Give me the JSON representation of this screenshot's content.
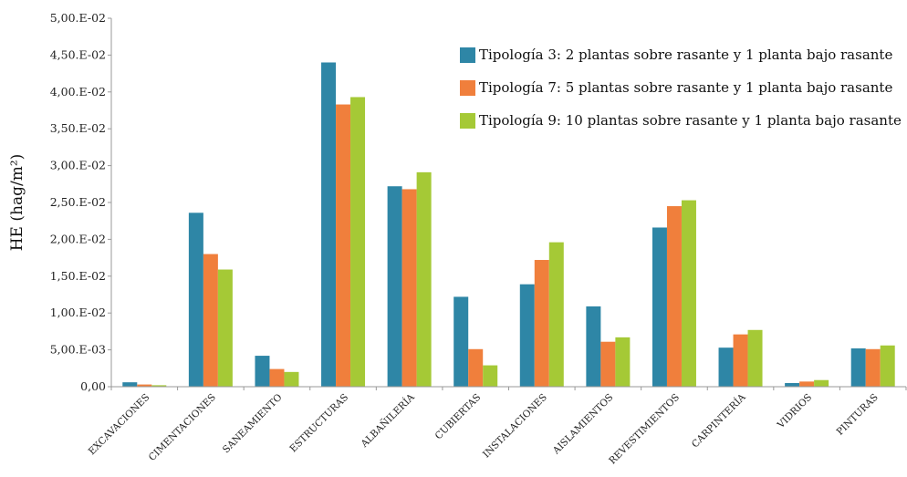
{
  "chart_data": {
    "type": "bar",
    "title": "",
    "xlabel": "",
    "ylabel": "HE (hag/m²)",
    "ylim": [
      0,
      0.05
    ],
    "y_ticks": [
      {
        "value": 0,
        "label": "0,00"
      },
      {
        "value": 0.005,
        "label": "5,00.E-03"
      },
      {
        "value": 0.01,
        "label": "1,00.E-02"
      },
      {
        "value": 0.015,
        "label": "1,50.E-02"
      },
      {
        "value": 0.02,
        "label": "2,00.E-02"
      },
      {
        "value": 0.025,
        "label": "2,50.E-02"
      },
      {
        "value": 0.03,
        "label": "3,00.E-02"
      },
      {
        "value": 0.035,
        "label": "3,50.E-02"
      },
      {
        "value": 0.04,
        "label": "4,00.E-02"
      },
      {
        "value": 0.045,
        "label": "4,50.E-02"
      },
      {
        "value": 0.05,
        "label": "5,00.E-02"
      }
    ],
    "categories": [
      "EXCAVACIONES",
      "CIMENTACIONES",
      "SANEAMIENTO",
      "ESTRUCTURAS",
      "ALBAÑILERÍA",
      "CUBIERTAS",
      "INSTALACIONES",
      "AISLAMIENTOS",
      "REVESTIMIENTOS",
      "CARPINTERÍA",
      "VIDRIOS",
      "PINTURAS"
    ],
    "series": [
      {
        "name": "Tipología 3: 2 plantas sobre rasante y 1 planta bajo rasante",
        "color": "#2E86A6",
        "values": [
          0.0006,
          0.0236,
          0.0042,
          0.044,
          0.0272,
          0.0122,
          0.0139,
          0.0109,
          0.0216,
          0.0053,
          0.0005,
          0.0052
        ]
      },
      {
        "name": "Tipología 7: 5 plantas sobre rasante y 1 planta bajo rasante",
        "color": "#F07F3C",
        "values": [
          0.0003,
          0.018,
          0.0024,
          0.0383,
          0.0268,
          0.0051,
          0.0172,
          0.0061,
          0.0245,
          0.0071,
          0.0007,
          0.0051
        ]
      },
      {
        "name": "Tipología 9: 10 plantas sobre rasante y 1 planta bajo rasante",
        "color": "#A5C936",
        "values": [
          0.0002,
          0.0159,
          0.002,
          0.0393,
          0.0291,
          0.0029,
          0.0196,
          0.0067,
          0.0253,
          0.0077,
          0.0009,
          0.0056
        ]
      }
    ],
    "legend_position": "top-right",
    "grid": false
  }
}
